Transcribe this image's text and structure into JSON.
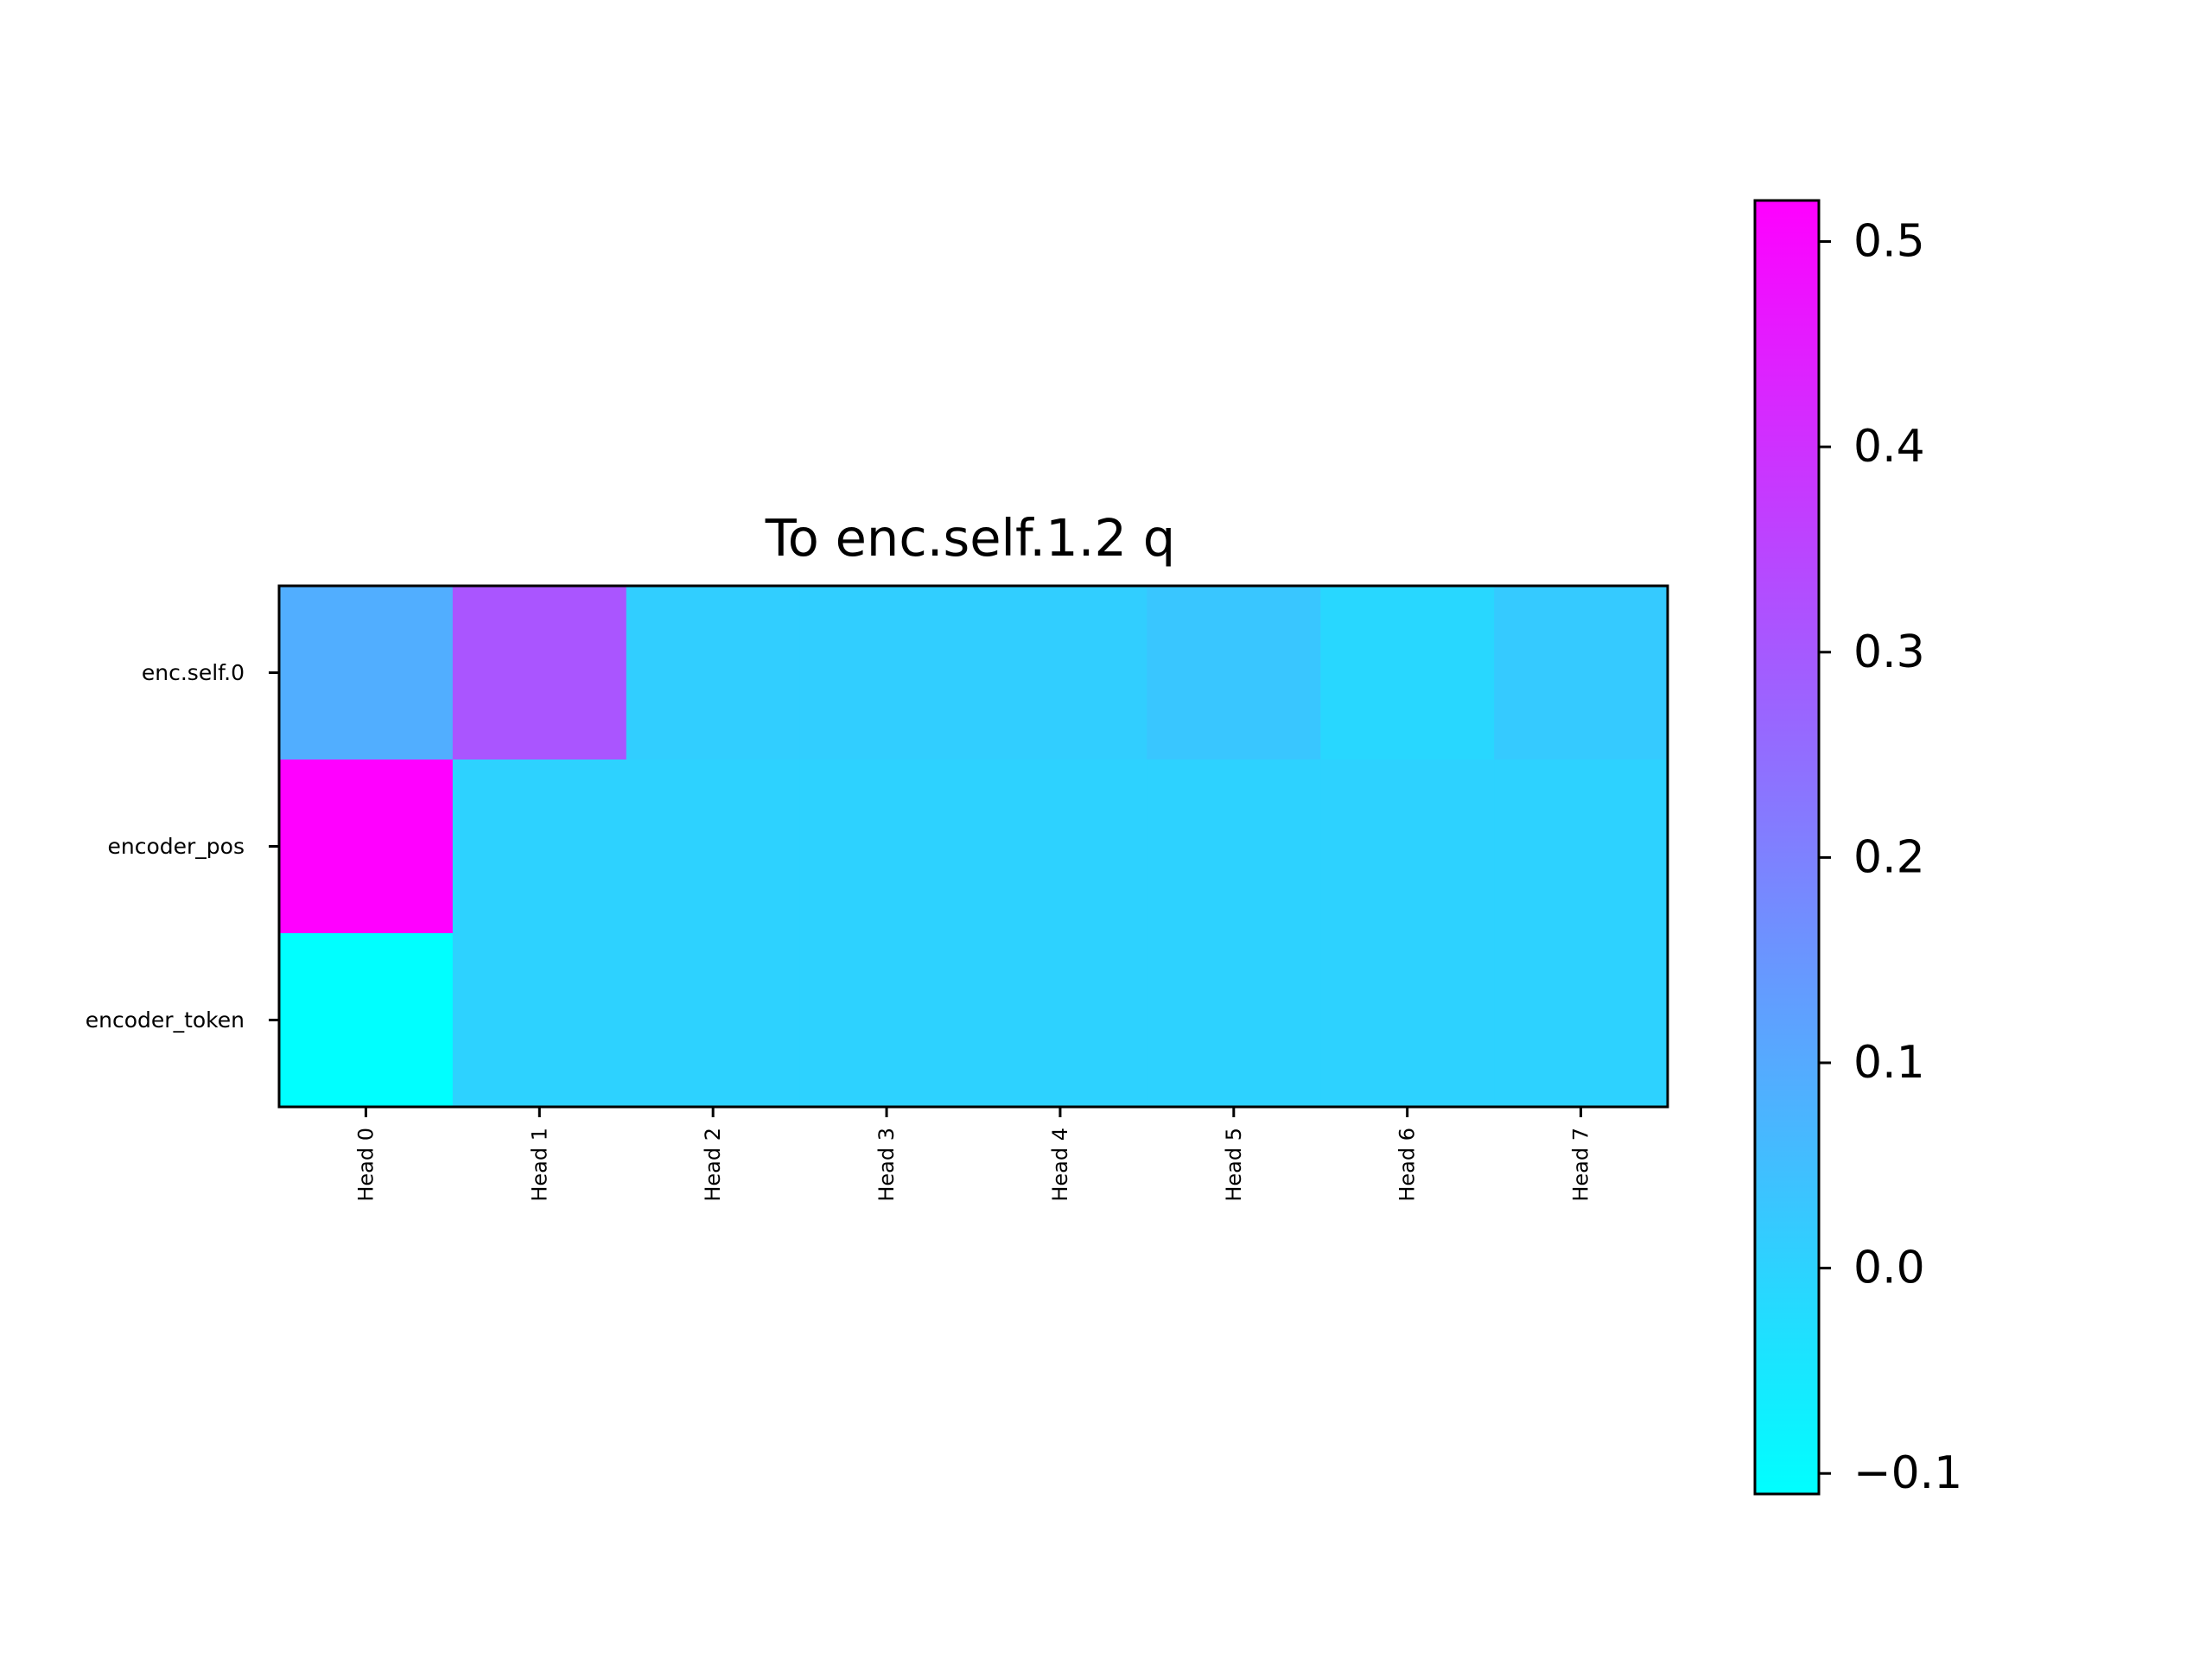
{
  "chart_data": {
    "type": "heatmap",
    "title": "To enc.self.1.2 q",
    "xlabel": "",
    "ylabel": "",
    "x_categories": [
      "Head 0",
      "Head 1",
      "Head 2",
      "Head 3",
      "Head 4",
      "Head 5",
      "Head 6",
      "Head 7"
    ],
    "y_categories": [
      "enc.self.0",
      "encoder_pos",
      "encoder_token"
    ],
    "values": [
      [
        0.09,
        0.31,
        0.01,
        0.01,
        0.01,
        0.03,
        -0.01,
        0.02
      ],
      [
        0.52,
        0.0,
        0.0,
        0.0,
        0.0,
        0.0,
        0.0,
        0.0
      ],
      [
        -0.11,
        0.0,
        0.0,
        0.0,
        0.0,
        0.0,
        0.0,
        0.0
      ]
    ],
    "colormap": "cool",
    "colormap_stops": [
      "#00ffff",
      "#ff00ff"
    ],
    "vmin": -0.11,
    "vmax": 0.52,
    "colorbar": {
      "position": "right",
      "ticks": [
        -0.1,
        0.0,
        0.1,
        0.2,
        0.3,
        0.4,
        0.5
      ],
      "tick_labels": [
        "−0.1",
        "0.0",
        "0.1",
        "0.2",
        "0.3",
        "0.4",
        "0.5"
      ]
    },
    "grid": false
  }
}
